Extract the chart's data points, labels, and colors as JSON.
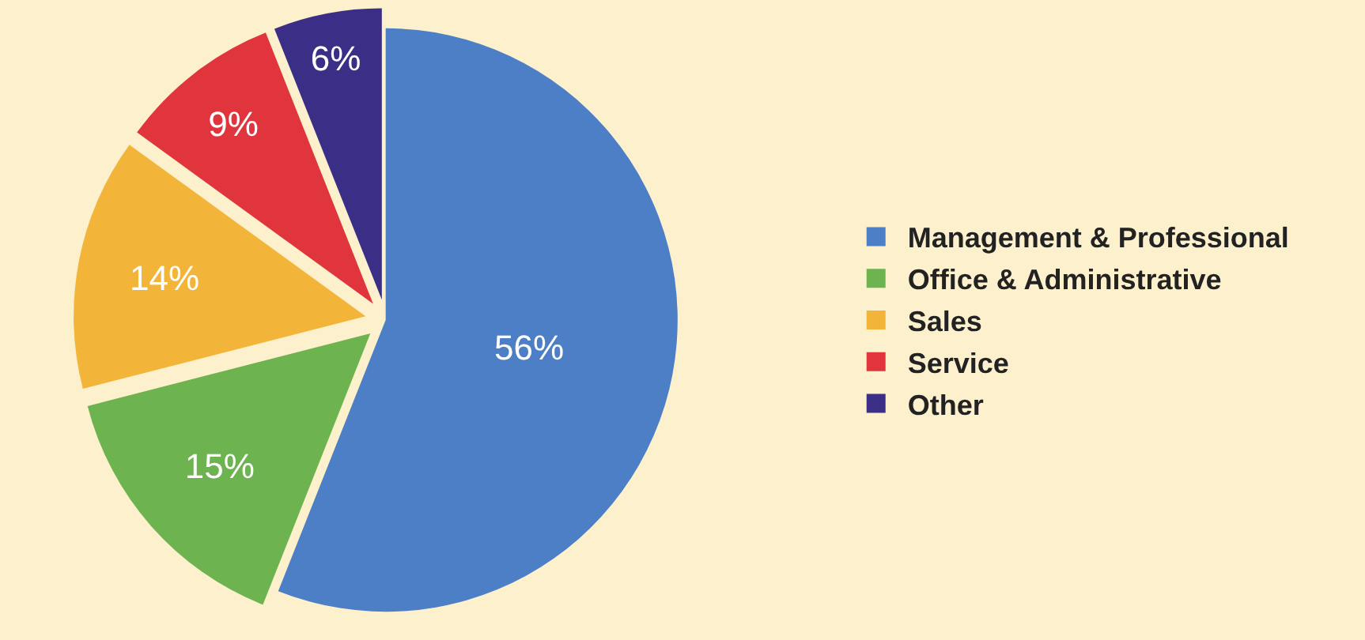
{
  "chart_data": {
    "type": "pie",
    "categories": [
      "Management & Professional",
      "Office & Administrative",
      "Sales",
      "Service",
      "Other"
    ],
    "values": [
      56,
      15,
      14,
      9,
      6
    ],
    "colors": [
      "#4d7fc6",
      "#6db34f",
      "#f2b53a",
      "#e0353c",
      "#3a2e86"
    ],
    "value_labels": [
      "56%",
      "15%",
      "14%",
      "9%",
      "6%"
    ],
    "legend": "right"
  }
}
